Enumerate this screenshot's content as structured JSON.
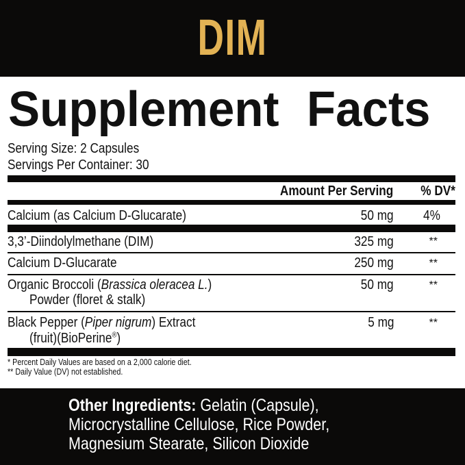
{
  "brand": "DIM",
  "title": "Supplement Facts",
  "serving_size": "Serving Size: 2 Capsules",
  "servings_per_container": "Servings Per Container: 30",
  "header": {
    "amount": "Amount Per Serving",
    "dv": "% DV*"
  },
  "rows": [
    {
      "name": "Calcium (as Calcium D-Glucarate)",
      "amount": "50 mg",
      "dv": "4%"
    },
    {
      "name": "3,3’-Diindolylmethane (DIM)",
      "amount": "325 mg",
      "dv": "**"
    },
    {
      "name": "Calcium D-Glucarate",
      "amount": "250 mg",
      "dv": "**"
    },
    {
      "name_pre": "Organic Broccoli (",
      "name_italic": "Brassica oleracea L.",
      "name_post": ")",
      "name_line2": "Powder (floret & stalk)",
      "amount": "50 mg",
      "dv": "**"
    },
    {
      "name_pre": "Black Pepper (",
      "name_italic": "Piper nigrum",
      "name_post": ") Extract",
      "name_line2": "(fruit)(BioPerine",
      "reg": "®",
      "name_line2_end": ")",
      "amount": "5 mg",
      "dv": "**"
    }
  ],
  "footnotes": [
    "* Percent Daily Values are based on a 2,000 calorie diet.",
    "** Daily Value (DV) not established."
  ],
  "other_ingredients": {
    "label": "Other Ingredients:",
    "line1": " Gelatin (Capsule),",
    "line2": "Microcrystalline Cellulose, Rice Powder,",
    "line3": "Magnesium Stearate, Silicon Dioxide"
  },
  "colors": {
    "brand": "#e2b254",
    "band": "#0b0a09"
  }
}
